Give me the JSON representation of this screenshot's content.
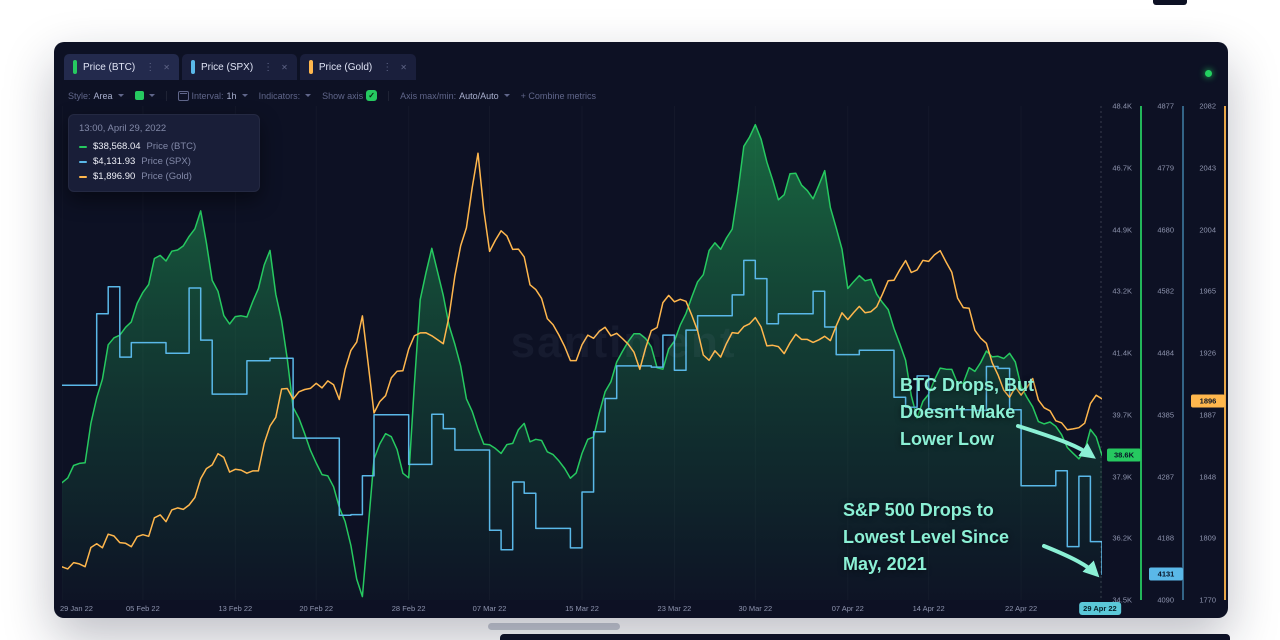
{
  "icons": {
    "check": "✓",
    "menu": "⋮",
    "close": "✕"
  },
  "window": {
    "status_dot_color": "#23d160"
  },
  "tabs": [
    {
      "label": "Price (BTC)",
      "color": "#26c960"
    },
    {
      "label": "Price (SPX)",
      "color": "#5ab8e8"
    },
    {
      "label": "Price (Gold)",
      "color": "#ffb74d"
    }
  ],
  "toolbar": {
    "style_label": "Style:",
    "style_value": "Area",
    "swatch_color": "#26c960",
    "interval_label": "Interval:",
    "interval_value": "1h",
    "indicators_label": "Indicators:",
    "show_axis_label": "Show axis",
    "axis_maxmin_label": "Axis max/min:",
    "axis_maxmin_value": "Auto/Auto",
    "combine_label": "+ Combine metrics"
  },
  "tooltip": {
    "timestamp": "13:00, April 29, 2022",
    "rows": [
      {
        "value": "$38,568.04",
        "metric": "Price (BTC)",
        "color": "#26c960"
      },
      {
        "value": "$4,131.93",
        "metric": "Price (SPX)",
        "color": "#5ab8e8"
      },
      {
        "value": "$1,896.90",
        "metric": "Price (Gold)",
        "color": "#ffb74d"
      }
    ]
  },
  "watermark": "santiment",
  "annotations": [
    {
      "lines": [
        "BTC Drops, But",
        "Doesn't Make",
        "Lower Low"
      ]
    },
    {
      "lines": [
        "S&P 500 Drops to",
        "Lowest Level Since",
        "May, 2021"
      ]
    }
  ],
  "axes": [
    {
      "name": "BTC",
      "color": "#26c960",
      "badge": "38.6K",
      "badge_value": 38568,
      "ylim": [
        34500,
        48400
      ],
      "ticks": [
        "48.4K",
        "46.7K",
        "44.9K",
        "43.2K",
        "41.4K",
        "39.7K",
        "37.9K",
        "36.2K",
        "34.5K"
      ]
    },
    {
      "name": "SPX",
      "color": "#5ab8e8",
      "badge": "4131",
      "badge_value": 4131,
      "ylim": [
        4090,
        4877
      ],
      "ticks": [
        "4877",
        "4779",
        "4680",
        "4582",
        "4484",
        "4385",
        "4287",
        "4188",
        "4090"
      ]
    },
    {
      "name": "Gold",
      "color": "#ffb74d",
      "badge": "1896",
      "badge_value": 1896,
      "ylim": [
        1770,
        2082
      ],
      "ticks": [
        "2082",
        "2043",
        "2004",
        "1965",
        "1926",
        "1887",
        "1848",
        "1809",
        "1770"
      ]
    }
  ],
  "x_axis": {
    "ticks": [
      {
        "label": "29 Jan 22",
        "day": 0
      },
      {
        "label": "05 Feb 22",
        "day": 7
      },
      {
        "label": "13 Feb 22",
        "day": 15
      },
      {
        "label": "20 Feb 22",
        "day": 22
      },
      {
        "label": "28 Feb 22",
        "day": 30
      },
      {
        "label": "07 Mar 22",
        "day": 37
      },
      {
        "label": "15 Mar 22",
        "day": 45
      },
      {
        "label": "23 Mar 22",
        "day": 53
      },
      {
        "label": "30 Mar 22",
        "day": 60
      },
      {
        "label": "07 Apr 22",
        "day": 68
      },
      {
        "label": "14 Apr 22",
        "day": 75
      },
      {
        "label": "22 Apr 22",
        "day": 83
      }
    ],
    "current": {
      "label": "29 Apr 22",
      "day": 90
    }
  },
  "chart_data": {
    "type": "line",
    "title": "",
    "x_unit": "days since 29 Jan 2022",
    "x_range": [
      0,
      90
    ],
    "legend_position": "top-left tooltip",
    "grid": "faint vertical",
    "series": [
      {
        "name": "Price (BTC)",
        "style": "area",
        "color": "#26c960",
        "ylim": [
          34500,
          48400
        ],
        "points": [
          [
            0,
            37800
          ],
          [
            1,
            38300
          ],
          [
            2,
            38600
          ],
          [
            4,
            41500
          ],
          [
            6,
            42500
          ],
          [
            8,
            43900
          ],
          [
            10,
            44300
          ],
          [
            12,
            45400
          ],
          [
            13,
            43600
          ],
          [
            14,
            42300
          ],
          [
            16,
            42600
          ],
          [
            18,
            44200
          ],
          [
            20,
            40100
          ],
          [
            22,
            38400
          ],
          [
            24,
            37200
          ],
          [
            26,
            34700
          ],
          [
            27,
            38500
          ],
          [
            28,
            39200
          ],
          [
            30,
            37900
          ],
          [
            31,
            43200
          ],
          [
            32,
            44400
          ],
          [
            34,
            41500
          ],
          [
            36,
            39300
          ],
          [
            38,
            38500
          ],
          [
            40,
            39400
          ],
          [
            42,
            38800
          ],
          [
            44,
            37800
          ],
          [
            46,
            39400
          ],
          [
            48,
            41100
          ],
          [
            50,
            42200
          ],
          [
            52,
            41000
          ],
          [
            54,
            42500
          ],
          [
            56,
            44400
          ],
          [
            58,
            44700
          ],
          [
            59,
            47200
          ],
          [
            60,
            47900
          ],
          [
            61,
            47100
          ],
          [
            62,
            45600
          ],
          [
            63,
            46400
          ],
          [
            65,
            45900
          ],
          [
            66,
            46600
          ],
          [
            68,
            43300
          ],
          [
            70,
            43600
          ],
          [
            72,
            42300
          ],
          [
            74,
            39600
          ],
          [
            76,
            41200
          ],
          [
            78,
            40500
          ],
          [
            80,
            41500
          ],
          [
            82,
            41400
          ],
          [
            84,
            39700
          ],
          [
            86,
            39500
          ],
          [
            88,
            38200
          ],
          [
            89,
            39300
          ],
          [
            90,
            38568
          ]
        ]
      },
      {
        "name": "Price (SPX)",
        "style": "step",
        "color": "#5ab8e8",
        "ylim": [
          4090,
          4877
        ],
        "points": [
          [
            0,
            4432
          ],
          [
            3,
            4546
          ],
          [
            4,
            4589
          ],
          [
            5,
            4477
          ],
          [
            6,
            4500
          ],
          [
            9,
            4483
          ],
          [
            11,
            4587
          ],
          [
            12,
            4504
          ],
          [
            13,
            4418
          ],
          [
            16,
            4471
          ],
          [
            18,
            4475
          ],
          [
            20,
            4348
          ],
          [
            24,
            4225
          ],
          [
            25,
            4226
          ],
          [
            26,
            4288
          ],
          [
            27,
            4385
          ],
          [
            30,
            4306
          ],
          [
            32,
            4386
          ],
          [
            33,
            4363
          ],
          [
            34,
            4329
          ],
          [
            37,
            4201
          ],
          [
            38,
            4170
          ],
          [
            39,
            4278
          ],
          [
            40,
            4260
          ],
          [
            41,
            4204
          ],
          [
            44,
            4173
          ],
          [
            45,
            4262
          ],
          [
            46,
            4358
          ],
          [
            47,
            4411
          ],
          [
            48,
            4463
          ],
          [
            51,
            4461
          ],
          [
            52,
            4512
          ],
          [
            53,
            4456
          ],
          [
            54,
            4520
          ],
          [
            55,
            4543
          ],
          [
            58,
            4576
          ],
          [
            59,
            4631
          ],
          [
            60,
            4602
          ],
          [
            61,
            4530
          ],
          [
            62,
            4546
          ],
          [
            65,
            4582
          ],
          [
            66,
            4525
          ],
          [
            67,
            4481
          ],
          [
            69,
            4488
          ],
          [
            72,
            4413
          ],
          [
            73,
            4397
          ],
          [
            74,
            4447
          ],
          [
            75,
            4393
          ],
          [
            79,
            4392
          ],
          [
            80,
            4462
          ],
          [
            81,
            4459
          ],
          [
            82,
            4393
          ],
          [
            83,
            4272
          ],
          [
            86,
            4296
          ],
          [
            87,
            4175
          ],
          [
            88,
            4287
          ],
          [
            89,
            4183
          ],
          [
            90,
            4131
          ]
        ]
      },
      {
        "name": "Price (Gold)",
        "style": "line",
        "color": "#ffb74d",
        "ylim": [
          1770,
          2082
        ],
        "points": [
          [
            0,
            1791
          ],
          [
            2,
            1797
          ],
          [
            4,
            1807
          ],
          [
            6,
            1808
          ],
          [
            9,
            1821
          ],
          [
            11,
            1833
          ],
          [
            13,
            1858
          ],
          [
            15,
            1852
          ],
          [
            17,
            1855
          ],
          [
            19,
            1898
          ],
          [
            22,
            1908
          ],
          [
            24,
            1899
          ],
          [
            26,
            1952
          ],
          [
            27,
            1889
          ],
          [
            29,
            1910
          ],
          [
            31,
            1945
          ],
          [
            33,
            1929
          ],
          [
            36,
            2052
          ],
          [
            37,
            1991
          ],
          [
            38,
            2000
          ],
          [
            40,
            1985
          ],
          [
            42,
            1951
          ],
          [
            44,
            1918
          ],
          [
            46,
            1943
          ],
          [
            48,
            1936
          ],
          [
            50,
            1921
          ],
          [
            52,
            1958
          ],
          [
            54,
            1957
          ],
          [
            56,
            1923
          ],
          [
            58,
            1933
          ],
          [
            60,
            1949
          ],
          [
            62,
            1926
          ],
          [
            64,
            1934
          ],
          [
            66,
            1937
          ],
          [
            68,
            1948
          ],
          [
            70,
            1954
          ],
          [
            72,
            1976
          ],
          [
            74,
            1978
          ],
          [
            76,
            1995
          ],
          [
            78,
            1952
          ],
          [
            80,
            1932
          ],
          [
            82,
            1897
          ],
          [
            84,
            1904
          ],
          [
            86,
            1886
          ],
          [
            88,
            1872
          ],
          [
            89,
            1894
          ],
          [
            90,
            1897
          ]
        ]
      }
    ]
  }
}
